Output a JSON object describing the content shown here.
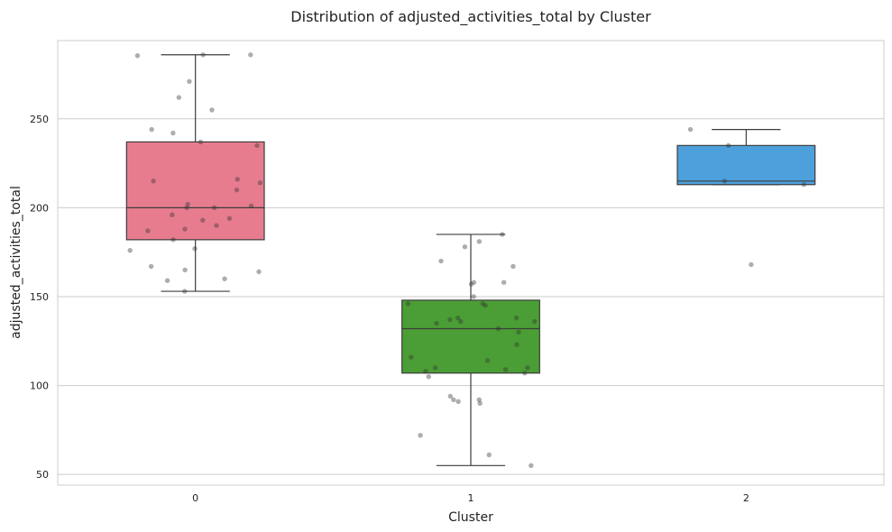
{
  "chart_data": {
    "type": "box",
    "title": "Distribution of adjusted_activities_total by Cluster",
    "xlabel": "Cluster",
    "ylabel": "adjusted_activities_total",
    "categories": [
      "0",
      "1",
      "2"
    ],
    "ylim": [
      44,
      294
    ],
    "yticks": [
      50,
      100,
      150,
      200,
      250
    ],
    "grid": "horizontal",
    "colors": [
      "#e77c8f",
      "#4a9e35",
      "#4ea0dc"
    ],
    "boxes": [
      {
        "category": "0",
        "whisker_low": 153,
        "q1": 182,
        "median": 200,
        "q3": 237,
        "whisker_high": 286
      },
      {
        "category": "1",
        "whisker_low": 55,
        "q1": 107,
        "median": 132,
        "q3": 148,
        "whisker_high": 185
      },
      {
        "category": "2",
        "whisker_low": 213,
        "q1": 213,
        "median": 215,
        "q3": 235,
        "whisker_high": 244
      }
    ],
    "points": [
      {
        "category": "0",
        "values": [
          286,
          285.5,
          286,
          262,
          271,
          255,
          244,
          242,
          237,
          235,
          216,
          215,
          214,
          210,
          202,
          201,
          200,
          200,
          196,
          194,
          193,
          190,
          188,
          187,
          182,
          177,
          176,
          167,
          165,
          164,
          160,
          159,
          153
        ]
      },
      {
        "category": "1",
        "values": [
          185,
          181,
          178,
          170,
          167,
          158,
          157,
          158,
          150,
          146,
          146,
          145,
          138,
          138,
          137,
          136,
          135,
          136,
          132,
          130,
          123,
          116,
          114,
          110,
          110,
          109,
          108,
          107,
          105,
          94,
          92,
          92,
          91,
          90,
          72,
          61,
          55
        ]
      },
      {
        "category": "2",
        "values": [
          244,
          235,
          215,
          213,
          168
        ]
      }
    ]
  }
}
